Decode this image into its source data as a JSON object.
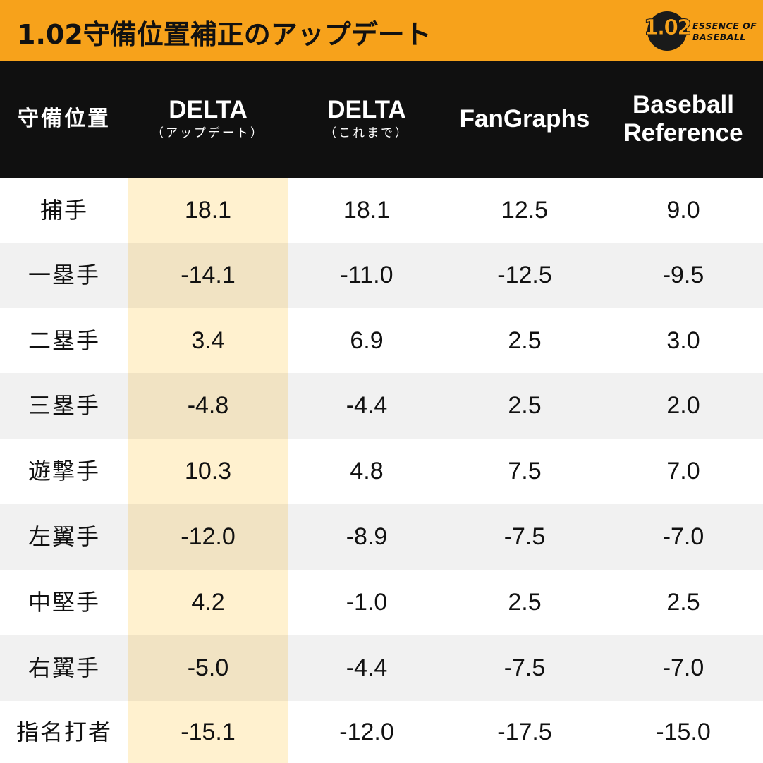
{
  "title": "1.02守備位置補正のアップデート",
  "logo": {
    "number": "1.02",
    "line1": "ESSENCE OF",
    "line2": "BASEBALL"
  },
  "colors": {
    "title_bar": "#f7a21b",
    "header_bg": "#101010",
    "highlight_column": "#fff1cf",
    "alt_row": "#f1f1f1"
  },
  "table": {
    "headers": [
      {
        "main": "守備位置",
        "sub": ""
      },
      {
        "main": "DELTA",
        "sub": "（アップデート）"
      },
      {
        "main": "DELTA",
        "sub": "（これまで）"
      },
      {
        "main": "FanGraphs",
        "sub": ""
      },
      {
        "main": "Baseball",
        "sub": "Reference"
      }
    ],
    "rows": [
      {
        "position": "捕手",
        "values": [
          "18.1",
          "18.1",
          "12.5",
          "9.0"
        ]
      },
      {
        "position": "一塁手",
        "values": [
          "-14.1",
          "-11.0",
          "-12.5",
          "-9.5"
        ]
      },
      {
        "position": "二塁手",
        "values": [
          "3.4",
          "6.9",
          "2.5",
          "3.0"
        ]
      },
      {
        "position": "三塁手",
        "values": [
          "-4.8",
          "-4.4",
          "2.5",
          "2.0"
        ]
      },
      {
        "position": "遊撃手",
        "values": [
          "10.3",
          "4.8",
          "7.5",
          "7.0"
        ]
      },
      {
        "position": "左翼手",
        "values": [
          "-12.0",
          "-8.9",
          "-7.5",
          "-7.0"
        ]
      },
      {
        "position": "中堅手",
        "values": [
          "4.2",
          "-1.0",
          "2.5",
          "2.5"
        ]
      },
      {
        "position": "右翼手",
        "values": [
          "-5.0",
          "-4.4",
          "-7.5",
          "-7.0"
        ]
      },
      {
        "position": "指名打者",
        "values": [
          "-15.1",
          "-12.0",
          "-17.5",
          "-15.0"
        ]
      }
    ]
  }
}
